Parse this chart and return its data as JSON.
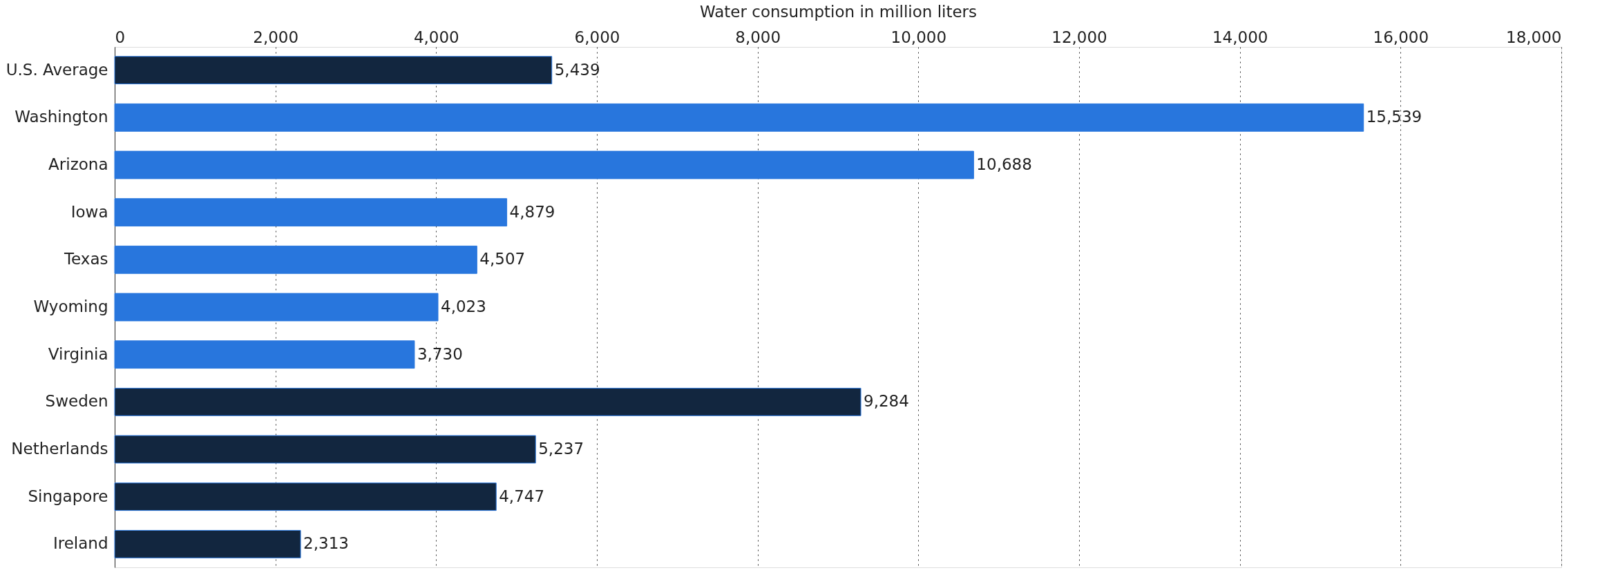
{
  "chart_data": {
    "type": "bar",
    "orientation": "horizontal",
    "xlabel": "Water consumption in million liters",
    "categories": [
      "U.S. Average",
      "Washington",
      "Arizona",
      "Iowa",
      "Texas",
      "Wyoming",
      "Virginia",
      "Sweden",
      "Netherlands",
      "Singapore",
      "Ireland"
    ],
    "values": [
      5439,
      15539,
      10688,
      4879,
      4507,
      4023,
      3730,
      9284,
      5237,
      4747,
      2313
    ],
    "value_labels": [
      "5,439",
      "15,539",
      "10,688",
      "4,879",
      "4,507",
      "4,023",
      "3,730",
      "9,284",
      "5,237",
      "4,747",
      "2,313"
    ],
    "colors": [
      "#12263f",
      "#2876dd",
      "#2876dd",
      "#2876dd",
      "#2876dd",
      "#2876dd",
      "#2876dd",
      "#12263f",
      "#12263f",
      "#12263f",
      "#12263f"
    ],
    "xlim": [
      0,
      18000
    ],
    "xticks": [
      0,
      {
        "value": 2000,
        "label": "2,000"
      },
      {
        "value": 4000,
        "label": "4,000"
      },
      {
        "value": 6000,
        "label": "6,000"
      },
      {
        "value": 8000,
        "label": "8,000"
      },
      {
        "value": 10000,
        "label": "10,000"
      },
      {
        "value": 12000,
        "label": "12,000"
      },
      {
        "value": 14000,
        "label": "14,000"
      },
      {
        "value": 16000,
        "label": "16,000"
      },
      {
        "value": 18000,
        "label": "18,000"
      }
    ],
    "grid": "x"
  }
}
